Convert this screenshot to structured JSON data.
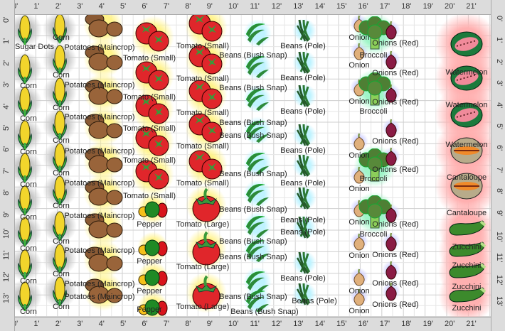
{
  "rulers": {
    "horizontal": [
      "0'",
      "1'",
      "2'",
      "3'",
      "4'",
      "5'",
      "6'",
      "7'",
      "8'",
      "9'",
      "10'",
      "11'",
      "12'",
      "13'",
      "14'",
      "15'",
      "16'",
      "17'",
      "18'",
      "19'",
      "20'",
      "21'"
    ],
    "vertical": [
      "0'",
      "1'",
      "2'",
      "3'",
      "4'",
      "5'",
      "6'",
      "7'",
      "8'",
      "9'",
      "10'",
      "11'",
      "12'",
      "13'"
    ]
  },
  "halo_colors": {
    "corn": "#c8c8c8",
    "potato": "#fff38a",
    "tomato": "#fff38a",
    "pepper": "#fff38a",
    "bean": "#bff3ff",
    "broccoli": "#9ff5c8",
    "onion": "#d8d8ff",
    "redonion": "#d8d8ff",
    "melon": "#ffb0b0"
  },
  "columns": [
    {
      "id": "corn-a",
      "items": [
        {
          "type": "corn",
          "label": "Sugar Dots"
        },
        {
          "type": "corn",
          "label": "Corn"
        },
        {
          "type": "corn",
          "label": "Corn"
        },
        {
          "type": "corn",
          "label": "Corn"
        },
        {
          "type": "corn",
          "label": "Corn"
        },
        {
          "type": "corn",
          "label": "Corn"
        },
        {
          "type": "corn",
          "label": "Corn"
        },
        {
          "type": "corn",
          "label": "Corn"
        },
        {
          "type": "corn",
          "label": "Corn"
        }
      ]
    },
    {
      "id": "corn-b",
      "items": [
        {
          "type": "corn",
          "label": "Corn"
        },
        {
          "type": "corn",
          "label": "Corn"
        },
        {
          "type": "corn",
          "label": "Corn"
        },
        {
          "type": "corn",
          "label": "Corn"
        },
        {
          "type": "corn",
          "label": "Corn"
        },
        {
          "type": "corn",
          "label": "Corn"
        },
        {
          "type": "corn",
          "label": "Corn"
        },
        {
          "type": "corn",
          "label": "Corn"
        },
        {
          "type": "corn",
          "label": "Corn"
        }
      ]
    },
    {
      "id": "potatoes",
      "items": [
        {
          "type": "potato",
          "label": "Potatoes (Maincrop)"
        },
        {
          "type": "potato",
          "label": "Potatoes (Maincrop)"
        },
        {
          "type": "potato",
          "label": "Potatoes (Maincrop)"
        },
        {
          "type": "potato",
          "label": "Potatoes (Maincrop)"
        },
        {
          "type": "potato",
          "label": "Potatoes (Maincrop)"
        },
        {
          "type": "potato",
          "label": "Potatoes (Maincrop)"
        },
        {
          "type": "potato",
          "label": "Potatoes (Maincrop)"
        },
        {
          "type": "potato",
          "label": "Potatoes (Maincrop)"
        },
        {
          "type": "potato",
          "label": "Potatoes (Maincrop)"
        }
      ]
    },
    {
      "id": "tomato-pepper",
      "items": [
        {
          "type": "tomato",
          "label": "Tomato (Small)"
        },
        {
          "type": "tomato",
          "label": "Tomato (Small)"
        },
        {
          "type": "tomato",
          "label": "Tomato (Small)"
        },
        {
          "type": "tomato",
          "label": "Tomato (Small)"
        },
        {
          "type": "tomato",
          "label": "Tomato (Small)"
        },
        {
          "type": "pepper",
          "label": "Pepper"
        },
        {
          "type": "pepper",
          "label": "Pepper"
        },
        {
          "type": "pepper",
          "label": "Pepper"
        },
        {
          "type": "pepper",
          "label": "Pepper"
        }
      ]
    },
    {
      "id": "tomato-2",
      "items": [
        {
          "type": "tomato",
          "label": "Tomato (Small)"
        },
        {
          "type": "tomato",
          "label": "Tomato (Small)"
        },
        {
          "type": "tomato",
          "label": "Tomato (Small)"
        },
        {
          "type": "tomato",
          "label": "Tomato (Small)"
        },
        {
          "type": "tomato",
          "label": "Tomato (Small)"
        },
        {
          "type": "tomatolarge",
          "label": "Tomato (Large)"
        },
        {
          "type": "tomatolarge",
          "label": "Tomato (Large)"
        },
        {
          "type": "tomatolarge",
          "label": "Tomato (Large)"
        }
      ]
    },
    {
      "id": "beans-bush",
      "items": [
        {
          "type": "bean",
          "label": "Beans (Bush Snap)"
        },
        {
          "type": "bean",
          "label": "Beans (Bush Snap)"
        },
        {
          "type": "bean",
          "label": "Beans (Bush Snap)"
        },
        {
          "type": "bean",
          "label": "Beans (Bush Snap)"
        },
        {
          "type": "bean",
          "label": "Beans (Bush Snap)"
        },
        {
          "type": "bean",
          "label": "Beans (Bush Snap)"
        },
        {
          "type": "bean",
          "label": "Beans (Bush Snap)"
        },
        {
          "type": "bean",
          "label": "Beans (Bush Snap)"
        },
        {
          "type": "bean",
          "label": "Beans (Bush Snap)"
        },
        {
          "type": "bean",
          "label": "Beans (Bush Snap)"
        }
      ]
    },
    {
      "id": "beans-pole",
      "items": [
        {
          "type": "polebean",
          "label": "Beans (Pole)"
        },
        {
          "type": "polebean",
          "label": "Beans (Pole)"
        },
        {
          "type": "polebean",
          "label": "Beans (Pole)"
        },
        {
          "type": "polebean",
          "label": "Beans (Pole)"
        },
        {
          "type": "polebean",
          "label": "Beans (Pole)"
        },
        {
          "type": "polebean",
          "label": "Beans (Pole)"
        },
        {
          "type": "polebean",
          "label": "Beans (Pole)"
        },
        {
          "type": "polebean",
          "label": "Beans (Pole)"
        },
        {
          "type": "polebean",
          "label": "Beans (Pole)"
        }
      ]
    },
    {
      "id": "onions",
      "items": [
        {
          "type": "onion",
          "label": "Onion"
        },
        {
          "type": "onion",
          "label": "Onion"
        },
        {
          "type": "onion",
          "label": "Onion"
        },
        {
          "type": "onion",
          "label": "Onion"
        },
        {
          "type": "onion",
          "label": "Onion"
        },
        {
          "type": "onion",
          "label": "Onion"
        },
        {
          "type": "onion",
          "label": "Onion"
        },
        {
          "type": "onion",
          "label": "Onion"
        },
        {
          "type": "onion",
          "label": "Onion"
        }
      ]
    },
    {
      "id": "broccoli",
      "items": [
        {
          "type": "broccoli",
          "label": "Broccoli"
        },
        {
          "type": "broccoli",
          "label": "Broccoli"
        },
        {
          "type": "broccoli",
          "label": "Broccoli"
        },
        {
          "type": "broccoli",
          "label": "Broccoli"
        }
      ]
    },
    {
      "id": "onions-red",
      "items": [
        {
          "type": "redonion",
          "label": "Onions (Red)"
        },
        {
          "type": "redonion",
          "label": "Onions (Red)"
        },
        {
          "type": "redonion",
          "label": "Onions (Red)"
        },
        {
          "type": "redonion",
          "label": "Onions (Red)"
        },
        {
          "type": "redonion",
          "label": "Onions (Red)"
        },
        {
          "type": "redonion",
          "label": "Onions (Red)"
        },
        {
          "type": "redonion",
          "label": "Onions (Red)"
        },
        {
          "type": "redonion",
          "label": "Onions (Red)"
        },
        {
          "type": "redonion",
          "label": "Onions (Red)"
        }
      ]
    },
    {
      "id": "melons",
      "items": [
        {
          "type": "watermelon",
          "label": "Watermelon"
        },
        {
          "type": "watermelon",
          "label": "Watermelon"
        },
        {
          "type": "watermelon",
          "label": "Watermelon"
        },
        {
          "type": "cantaloupe",
          "label": "Cantaloupe"
        },
        {
          "type": "cantaloupe",
          "label": "Cantaloupe"
        },
        {
          "type": "zucchini",
          "label": "Zucchini"
        },
        {
          "type": "zucchini",
          "label": "Zucchini"
        },
        {
          "type": "zucchini",
          "label": "Zucchini"
        },
        {
          "type": "zucchini",
          "label": "Zucchini"
        }
      ]
    }
  ]
}
